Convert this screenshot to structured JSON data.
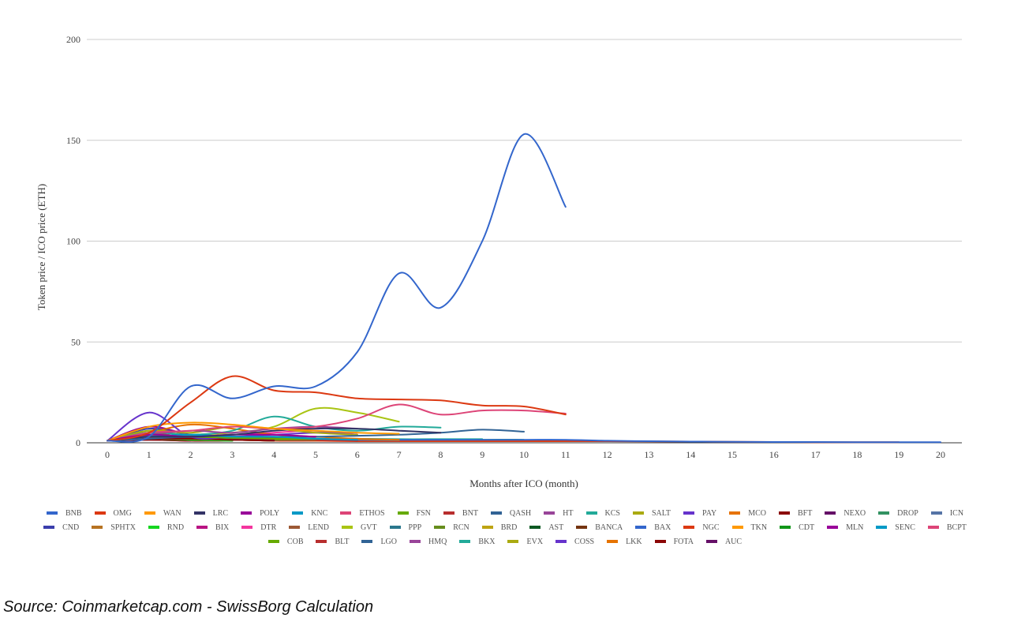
{
  "chart_data": {
    "type": "line",
    "xlabel": "Months after ICO (month)",
    "ylabel": "Token price / ICO price (ETH)",
    "xlim": [
      0,
      20
    ],
    "ylim": [
      0,
      200
    ],
    "x_ticks": [
      "0",
      "1",
      "2",
      "3",
      "4",
      "5",
      "6",
      "7",
      "8",
      "9",
      "10",
      "11",
      "12",
      "13",
      "14",
      "15",
      "16",
      "17",
      "18",
      "19",
      "20"
    ],
    "y_ticks": [
      "0",
      "50",
      "100",
      "150",
      "200"
    ],
    "grid": "horizontal",
    "legend_position": "bottom",
    "series": [
      {
        "name": "BNB",
        "color": "#3366cc",
        "values": [
          1,
          3,
          28,
          22,
          28,
          28,
          45,
          84,
          67,
          100,
          153,
          117
        ]
      },
      {
        "name": "OMG",
        "color": "#dc3912",
        "values": [
          1,
          5,
          20,
          33,
          26,
          25,
          22,
          21.5,
          21,
          18.5,
          18,
          14
        ]
      },
      {
        "name": "WAN",
        "color": "#ff9900",
        "values": [
          1,
          8,
          10,
          9,
          7,
          6,
          5,
          4.5
        ]
      },
      {
        "name": "LRC",
        "color": "#333366",
        "values": [
          1,
          3,
          3,
          4,
          6,
          7,
          7,
          6,
          5
        ]
      },
      {
        "name": "POLY",
        "color": "#990099",
        "values": [
          1,
          4,
          3,
          4,
          4,
          3
        ]
      },
      {
        "name": "KNC",
        "color": "#0099c6",
        "values": [
          1,
          3,
          4,
          3,
          3,
          2,
          1.5
        ]
      },
      {
        "name": "ETHOS",
        "color": "#dd4477",
        "values": [
          1,
          5,
          6,
          8,
          7,
          8,
          12,
          19,
          14,
          16,
          16,
          14.5
        ]
      },
      {
        "name": "FSN",
        "color": "#66aa00",
        "values": [
          1,
          4,
          3,
          2.5,
          2,
          1.8
        ]
      },
      {
        "name": "BNT",
        "color": "#b82e2e",
        "values": [
          1,
          3,
          3,
          2.5,
          2,
          1.5,
          1
        ]
      },
      {
        "name": "QASH",
        "color": "#316395",
        "values": [
          1,
          2,
          3,
          3,
          3,
          3,
          3.5,
          4,
          5,
          6.5,
          5.5
        ]
      },
      {
        "name": "HT",
        "color": "#994499",
        "values": [
          1,
          4,
          6,
          5,
          7,
          8,
          7
        ]
      },
      {
        "name": "KCS",
        "color": "#22aa99",
        "values": [
          1,
          5,
          4,
          6,
          13,
          8,
          6,
          8,
          7.5
        ]
      },
      {
        "name": "SALT",
        "color": "#aaaa11",
        "values": [
          1,
          6,
          5,
          8,
          7,
          5,
          4
        ]
      },
      {
        "name": "PAY",
        "color": "#6633cc",
        "values": [
          1,
          15,
          3,
          3,
          4,
          5,
          5
        ]
      },
      {
        "name": "MCO",
        "color": "#e67300",
        "values": [
          1,
          5,
          9,
          7,
          4,
          3,
          2,
          1.5
        ]
      },
      {
        "name": "BFT",
        "color": "#8b0707",
        "values": [
          1,
          2,
          2,
          1.5,
          1
        ]
      },
      {
        "name": "NEXO",
        "color": "#651067",
        "values": [
          1,
          2,
          2,
          1.5,
          1.5
        ]
      },
      {
        "name": "DROP",
        "color": "#329262",
        "values": [
          1,
          3,
          2,
          2,
          2.5,
          2
        ]
      },
      {
        "name": "ICN",
        "color": "#5574a6",
        "values": [
          1,
          3,
          4,
          3,
          2,
          2,
          1.5,
          1.2
        ]
      },
      {
        "name": "CND",
        "color": "#3b3eac",
        "values": [
          1,
          7,
          4,
          3,
          2.5,
          2
        ]
      },
      {
        "name": "SPHTX",
        "color": "#b77322",
        "values": [
          1,
          3,
          2,
          1.5,
          1
        ]
      },
      {
        "name": "RND",
        "color": "#16d620",
        "values": [
          1,
          2,
          1.5,
          1
        ]
      },
      {
        "name": "BIX",
        "color": "#b91383",
        "values": [
          1,
          4,
          3,
          2
        ]
      },
      {
        "name": "DTR",
        "color": "#f4359e",
        "values": [
          1,
          2,
          3,
          4,
          5,
          6,
          4
        ]
      },
      {
        "name": "LEND",
        "color": "#9c5935",
        "values": [
          1,
          4,
          3,
          2,
          2
        ]
      },
      {
        "name": "GVT",
        "color": "#a9c413",
        "values": [
          1,
          3,
          4,
          5,
          8,
          17,
          15,
          10.5
        ]
      },
      {
        "name": "PPP",
        "color": "#2a778d",
        "values": [
          1,
          3,
          2,
          2,
          1.5
        ]
      },
      {
        "name": "RCN",
        "color": "#668d1c",
        "values": [
          1,
          5,
          2,
          2,
          1.5,
          1.5,
          1.5
        ]
      },
      {
        "name": "BRD",
        "color": "#bea413",
        "values": [
          1,
          3,
          2,
          2,
          1.5
        ]
      },
      {
        "name": "AST",
        "color": "#0c5922",
        "values": [
          1,
          2,
          2,
          1.5,
          1
        ]
      },
      {
        "name": "BANCA",
        "color": "#743411",
        "values": [
          1,
          2,
          1.5,
          1
        ]
      },
      {
        "name": "BAX",
        "color": "#3366cc",
        "values": [
          1,
          3,
          2,
          2,
          1.5,
          1.5,
          1.5,
          1.5,
          1.5,
          1.5,
          1.5,
          1.5,
          1,
          0.8,
          0.6,
          0.5,
          0.4,
          0.4,
          0.3,
          0.3,
          0.3
        ]
      },
      {
        "name": "NGC",
        "color": "#dc3912",
        "values": [
          1,
          3,
          2,
          1.5,
          1,
          1,
          0.8,
          0.8,
          0.8,
          0.8,
          0.8,
          0.8,
          0.8,
          0.7,
          0.6,
          0.5,
          0.4,
          0.3,
          0.3,
          0.3
        ]
      },
      {
        "name": "TKN",
        "color": "#ff9900",
        "values": [
          1,
          2,
          2,
          1.5,
          1.5,
          1,
          1
        ]
      },
      {
        "name": "CDT",
        "color": "#109618",
        "values": [
          1,
          2,
          2,
          1.5,
          1.5,
          1,
          1,
          1,
          1,
          1.5,
          1.5
        ]
      },
      {
        "name": "MLN",
        "color": "#990099",
        "values": [
          1,
          8,
          4,
          3,
          2.5,
          2
        ]
      },
      {
        "name": "SENC",
        "color": "#0099c6",
        "values": [
          1,
          2,
          1.5,
          1
        ]
      },
      {
        "name": "BCPT",
        "color": "#dd4477",
        "values": [
          1,
          3,
          2,
          1.5,
          1
        ]
      },
      {
        "name": "COB",
        "color": "#66aa00",
        "values": [
          1,
          6,
          3,
          2,
          1.5
        ]
      },
      {
        "name": "BLT",
        "color": "#b82e2e",
        "values": [
          1,
          2,
          1.5,
          1
        ]
      },
      {
        "name": "LGO",
        "color": "#316395",
        "values": [
          1,
          2,
          2,
          1.5
        ]
      },
      {
        "name": "HMQ",
        "color": "#994499",
        "values": [
          1,
          3,
          2,
          2,
          1.5
        ]
      },
      {
        "name": "BKX",
        "color": "#22aa99",
        "values": [
          1,
          2,
          2,
          2,
          2,
          2,
          2,
          1.8,
          1.8,
          1.8
        ]
      },
      {
        "name": "EVX",
        "color": "#aaaa11",
        "values": [
          1,
          4,
          3,
          2
        ]
      },
      {
        "name": "COSS",
        "color": "#6633cc",
        "values": [
          1,
          3,
          2,
          1.5
        ]
      },
      {
        "name": "LKK",
        "color": "#e67300",
        "values": [
          1,
          2,
          1.5,
          1
        ]
      },
      {
        "name": "FOTA",
        "color": "#8b0707",
        "values": [
          1,
          1.5,
          1,
          1
        ]
      },
      {
        "name": "AUC",
        "color": "#651067",
        "values": [
          1,
          1.5,
          1
        ]
      }
    ]
  },
  "source_note": "Source: Coinmarketcap.com - SwissBorg Calculation"
}
